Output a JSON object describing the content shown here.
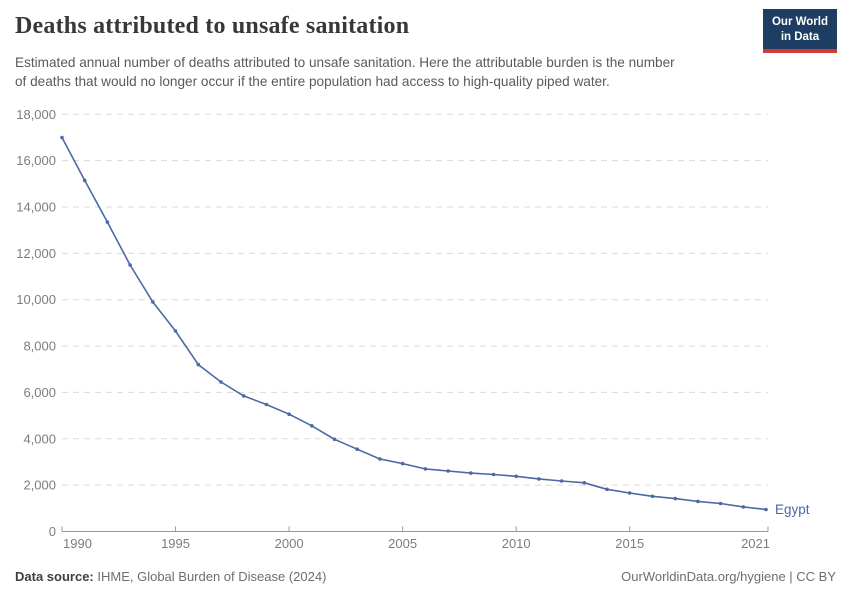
{
  "header": {
    "title": "Deaths attributed to unsafe sanitation",
    "subtitle": "Estimated annual number of deaths attributed to unsafe sanitation. Here the attributable burden is the number\nof deaths that would no longer occur if the entire population had access to high-quality piped water."
  },
  "logo": {
    "line1": "Our World",
    "line2": "in Data",
    "bg_color": "#1d3d63",
    "accent_color": "#cf3b35"
  },
  "chart_data": {
    "type": "line",
    "title": "Deaths attributed to unsafe sanitation",
    "x": [
      1990,
      1991,
      1992,
      1993,
      1994,
      1995,
      1996,
      1997,
      1998,
      1999,
      2000,
      2001,
      2002,
      2003,
      2004,
      2005,
      2006,
      2007,
      2008,
      2009,
      2010,
      2011,
      2012,
      2013,
      2014,
      2015,
      2016,
      2017,
      2018,
      2019,
      2020,
      2021
    ],
    "series": [
      {
        "name": "Egypt",
        "color": "#4a69a5",
        "values": [
          17000,
          15150,
          13350,
          11500,
          9900,
          8650,
          7200,
          6450,
          5850,
          5480,
          5060,
          4560,
          3980,
          3550,
          3130,
          2930,
          2700,
          2610,
          2520,
          2460,
          2380,
          2270,
          2180,
          2100,
          1820,
          1660,
          1520,
          1420,
          1300,
          1210,
          1060,
          950
        ]
      }
    ],
    "xlabel": "",
    "ylabel": "",
    "ylim": [
      0,
      18000
    ],
    "ytick_values": [
      0,
      2000,
      4000,
      6000,
      8000,
      10000,
      12000,
      14000,
      16000,
      18000
    ],
    "ytick_labels": [
      "0",
      "2,000",
      "4,000",
      "6,000",
      "8,000",
      "10,000",
      "12,000",
      "14,000",
      "16,000",
      "18,000"
    ],
    "xtick_values": [
      1990,
      1995,
      2000,
      2005,
      2010,
      2015,
      2021
    ],
    "xtick_labels": [
      "1990",
      "1995",
      "2000",
      "2005",
      "2010",
      "2015",
      "2021"
    ],
    "grid": "horizontal-dashed",
    "legend_position": "end-of-line-label",
    "end_label": "Egypt",
    "grid_color": "#dadada",
    "axis_color": "#999999",
    "tick_text_color": "#7d7d7d"
  },
  "footer": {
    "source_label": "Data source:",
    "source_value": " IHME, Global Burden of Disease (2024)",
    "credit": "OurWorldinData.org/hygiene | CC BY"
  }
}
